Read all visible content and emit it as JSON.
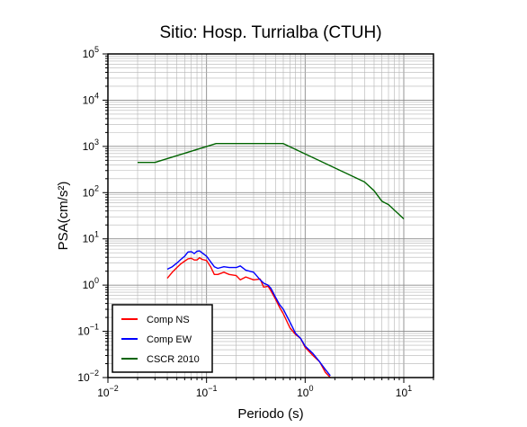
{
  "chart_data": {
    "type": "line",
    "title": "Sitio: Hosp. Turrialba (CTUH)",
    "xlabel": "Periodo (s)",
    "ylabel": "PSA(cm/s²)",
    "x_scale": "log",
    "y_scale": "log",
    "xlim": [
      0.01,
      20
    ],
    "ylim": [
      0.01,
      100000
    ],
    "grid": true,
    "legend_position": "bottom-left",
    "x_ticks": [
      {
        "base": "10",
        "exp": "−2",
        "value": 0.01
      },
      {
        "base": "10",
        "exp": "−1",
        "value": 0.1
      },
      {
        "base": "10",
        "exp": "0",
        "value": 1
      },
      {
        "base": "10",
        "exp": "1",
        "value": 10
      }
    ],
    "y_ticks": [
      {
        "base": "10",
        "exp": "−2",
        "value": 0.01
      },
      {
        "base": "10",
        "exp": "−1",
        "value": 0.1
      },
      {
        "base": "10",
        "exp": "0",
        "value": 1
      },
      {
        "base": "10",
        "exp": "1",
        "value": 10
      },
      {
        "base": "10",
        "exp": "2",
        "value": 100
      },
      {
        "base": "10",
        "exp": "3",
        "value": 1000
      },
      {
        "base": "10",
        "exp": "4",
        "value": 10000
      },
      {
        "base": "10",
        "exp": "5",
        "value": 100000
      }
    ],
    "series": [
      {
        "name": "Comp NS",
        "color": "#ff0000",
        "points": [
          [
            0.04,
            1.4
          ],
          [
            0.045,
            1.9
          ],
          [
            0.05,
            2.4
          ],
          [
            0.055,
            2.9
          ],
          [
            0.06,
            3.3
          ],
          [
            0.065,
            3.7
          ],
          [
            0.07,
            3.8
          ],
          [
            0.075,
            3.5
          ],
          [
            0.08,
            3.5
          ],
          [
            0.085,
            3.9
          ],
          [
            0.09,
            3.6
          ],
          [
            0.1,
            3.4
          ],
          [
            0.11,
            2.5
          ],
          [
            0.12,
            1.7
          ],
          [
            0.13,
            1.7
          ],
          [
            0.15,
            1.9
          ],
          [
            0.17,
            1.7
          ],
          [
            0.2,
            1.6
          ],
          [
            0.22,
            1.3
          ],
          [
            0.25,
            1.5
          ],
          [
            0.3,
            1.3
          ],
          [
            0.35,
            1.35
          ],
          [
            0.38,
            0.9
          ],
          [
            0.42,
            0.95
          ],
          [
            0.45,
            0.75
          ],
          [
            0.5,
            0.5
          ],
          [
            0.55,
            0.33
          ],
          [
            0.6,
            0.24
          ],
          [
            0.7,
            0.12
          ],
          [
            0.8,
            0.085
          ],
          [
            0.9,
            0.07
          ],
          [
            1.0,
            0.045
          ],
          [
            1.2,
            0.03
          ],
          [
            1.4,
            0.022
          ],
          [
            1.6,
            0.013
          ],
          [
            1.8,
            0.01
          ]
        ]
      },
      {
        "name": "Comp EW",
        "color": "#0000ff",
        "points": [
          [
            0.04,
            2.2
          ],
          [
            0.045,
            2.5
          ],
          [
            0.05,
            3.0
          ],
          [
            0.055,
            3.6
          ],
          [
            0.06,
            4.2
          ],
          [
            0.065,
            5.2
          ],
          [
            0.07,
            5.3
          ],
          [
            0.075,
            4.8
          ],
          [
            0.08,
            5.4
          ],
          [
            0.085,
            5.5
          ],
          [
            0.09,
            5.0
          ],
          [
            0.1,
            4.2
          ],
          [
            0.11,
            3.2
          ],
          [
            0.12,
            2.5
          ],
          [
            0.13,
            2.3
          ],
          [
            0.15,
            2.5
          ],
          [
            0.17,
            2.4
          ],
          [
            0.2,
            2.4
          ],
          [
            0.22,
            2.6
          ],
          [
            0.25,
            2.1
          ],
          [
            0.3,
            1.9
          ],
          [
            0.35,
            1.3
          ],
          [
            0.38,
            1.1
          ],
          [
            0.42,
            1.0
          ],
          [
            0.45,
            0.85
          ],
          [
            0.5,
            0.55
          ],
          [
            0.55,
            0.38
          ],
          [
            0.6,
            0.3
          ],
          [
            0.7,
            0.16
          ],
          [
            0.8,
            0.09
          ],
          [
            0.9,
            0.07
          ],
          [
            1.0,
            0.048
          ],
          [
            1.2,
            0.033
          ],
          [
            1.4,
            0.022
          ],
          [
            1.6,
            0.015
          ],
          [
            1.8,
            0.011
          ]
        ]
      },
      {
        "name": "CSCR 2010",
        "color": "#006400",
        "points": [
          [
            0.02,
            450
          ],
          [
            0.03,
            450
          ],
          [
            0.125,
            1150
          ],
          [
            0.6,
            1150
          ],
          [
            4.0,
            170
          ],
          [
            5.0,
            110
          ],
          [
            6.0,
            65
          ],
          [
            7.0,
            55
          ],
          [
            10.0,
            27
          ]
        ]
      }
    ]
  }
}
